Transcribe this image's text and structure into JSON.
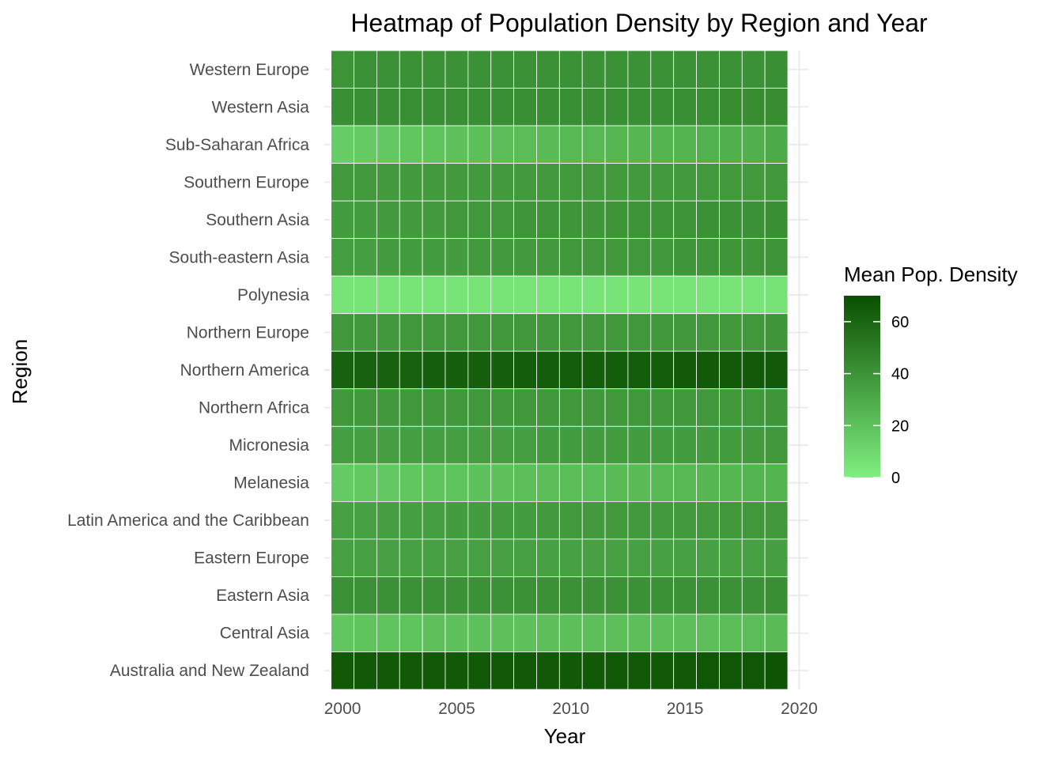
{
  "chart_data": {
    "type": "heatmap",
    "title": "Heatmap of Population Density by Region and Year",
    "xlabel": "Year",
    "ylabel": "Region",
    "x_ticks": [
      2000,
      2005,
      2010,
      2015,
      2020
    ],
    "x_range": [
      1999.5,
      2020
    ],
    "years": [
      2000,
      2001,
      2002,
      2003,
      2004,
      2005,
      2006,
      2007,
      2008,
      2009,
      2010,
      2011,
      2012,
      2013,
      2014,
      2015,
      2016,
      2017,
      2018,
      2019
    ],
    "regions": [
      "Western Europe",
      "Western Asia",
      "Sub-Saharan Africa",
      "Southern Europe",
      "Southern Asia",
      "South-eastern Asia",
      "Polynesia",
      "Northern Europe",
      "Northern America",
      "Northern Africa",
      "Micronesia",
      "Melanesia",
      "Latin America and the Caribbean",
      "Eastern Europe",
      "Eastern Asia",
      "Central Asia",
      "Australia and New Zealand"
    ],
    "values": [
      [
        40,
        41,
        41,
        41,
        41,
        41,
        41,
        41,
        41,
        41,
        41,
        41,
        41,
        41,
        41,
        41,
        41,
        41,
        41,
        42
      ],
      [
        42,
        42,
        42,
        42,
        42,
        42,
        42,
        42,
        42,
        42,
        42,
        42,
        42,
        42,
        42,
        42,
        42,
        43,
        43,
        43
      ],
      [
        15,
        16,
        17,
        18,
        19,
        20,
        21,
        22,
        22,
        23,
        24,
        24,
        25,
        25,
        26,
        26,
        27,
        28,
        28,
        30
      ],
      [
        37,
        37,
        37,
        37,
        37,
        37,
        37,
        37,
        37,
        37,
        37,
        37,
        37,
        37,
        37,
        37,
        37,
        37,
        37,
        38
      ],
      [
        36,
        36,
        37,
        37,
        37,
        38,
        38,
        38,
        39,
        39,
        39,
        39,
        40,
        40,
        40,
        40,
        41,
        41,
        41,
        42
      ],
      [
        35,
        35,
        36,
        36,
        36,
        36,
        37,
        37,
        37,
        37,
        38,
        38,
        38,
        38,
        38,
        39,
        39,
        39,
        39,
        40
      ],
      [
        5,
        5,
        5,
        5,
        5,
        5,
        5,
        5,
        5,
        5,
        5,
        5,
        5,
        5,
        5,
        5,
        5,
        5,
        5,
        6
      ],
      [
        38,
        38,
        38,
        38,
        38,
        38,
        38,
        38,
        38,
        38,
        38,
        38,
        38,
        38,
        38,
        38,
        38,
        38,
        38,
        39
      ],
      [
        62,
        62,
        62,
        62,
        63,
        63,
        63,
        63,
        64,
        64,
        64,
        64,
        64,
        64,
        64,
        65,
        65,
        65,
        65,
        65
      ],
      [
        38,
        38,
        38,
        38,
        38,
        38,
        38,
        38,
        38,
        38,
        38,
        38,
        38,
        38,
        38,
        38,
        38,
        38,
        38,
        39
      ],
      [
        35,
        35,
        35,
        35,
        35,
        35,
        35,
        35,
        35,
        36,
        36,
        36,
        36,
        36,
        36,
        36,
        36,
        36,
        37,
        38
      ],
      [
        16,
        17,
        17,
        18,
        19,
        19,
        20,
        20,
        21,
        22,
        22,
        22,
        23,
        23,
        24,
        24,
        25,
        25,
        26,
        26
      ],
      [
        34,
        34,
        35,
        35,
        35,
        36,
        36,
        36,
        36,
        37,
        37,
        37,
        37,
        37,
        37,
        37,
        37,
        38,
        38,
        38
      ],
      [
        34,
        34,
        34,
        34,
        34,
        34,
        34,
        34,
        34,
        34,
        34,
        34,
        34,
        34,
        34,
        34,
        34,
        34,
        34,
        35
      ],
      [
        41,
        41,
        41,
        41,
        41,
        41,
        41,
        41,
        41,
        41,
        41,
        41,
        41,
        41,
        41,
        41,
        41,
        41,
        41,
        42
      ],
      [
        18,
        19,
        19,
        19,
        20,
        20,
        20,
        20,
        20,
        21,
        21,
        21,
        21,
        21,
        21,
        21,
        21,
        22,
        22,
        23
      ],
      [
        66,
        66,
        66,
        66,
        66,
        66,
        66,
        66,
        66,
        66,
        66,
        66,
        66,
        66,
        66,
        66,
        67,
        67,
        67,
        68
      ]
    ],
    "legend": {
      "title": "Mean Pop. Density",
      "ticks": [
        0,
        20,
        40,
        60
      ],
      "range": [
        0,
        70
      ],
      "low_color": "#80ef80",
      "high_color": "#0a4f00",
      "placement": "right"
    },
    "grid": true,
    "cell_border_color": "#ffffff",
    "gridline_color": "#ebebeb"
  }
}
